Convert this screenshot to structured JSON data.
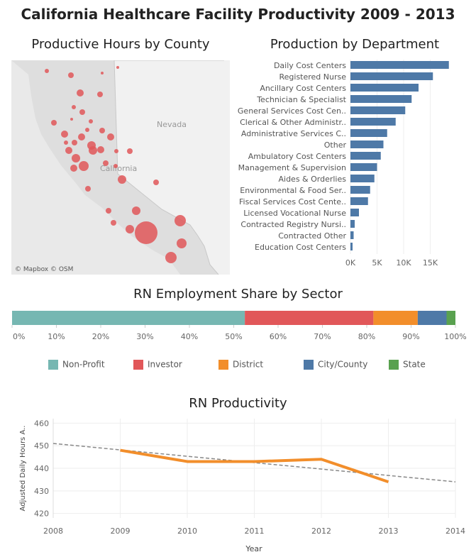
{
  "title": "California Healthcare Facility Productivity 2009 - 2013",
  "map": {
    "title": "Productive Hours by County",
    "place_labels": [
      "Nevada",
      "California"
    ],
    "attribution": "© Mapbox  © OSM",
    "bubble_color": "#e15759"
  },
  "chart_data": [
    {
      "type": "bar",
      "orientation": "horizontal",
      "title": "Production by Department",
      "categories": [
        "Daily Cost Centers",
        "Registered Nurse",
        "Ancillary Cost Centers",
        "Technician & Specialist",
        "General Services Cost Cen..",
        "Clerical & Other Administr..",
        "Administrative Services C..",
        "Other",
        "Ambulatory Cost Centers",
        "Management & Supervision",
        "Aides & Orderlies",
        "Environmental & Food Ser..",
        "Fiscal Services Cost Cente..",
        "Licensed Vocational Nurse",
        "Contracted Registry Nursi..",
        "Contracted Other",
        "Education Cost Centers"
      ],
      "values": [
        18500,
        15500,
        12800,
        11500,
        10300,
        8500,
        6900,
        6200,
        5700,
        5000,
        4500,
        3700,
        3300,
        1600,
        800,
        600,
        400
      ],
      "xticks": [
        "0K",
        "5K",
        "10K",
        "15K"
      ],
      "xlim": [
        0,
        20000
      ],
      "color": "#4e79a7"
    },
    {
      "type": "bar",
      "orientation": "stacked-100",
      "title": "RN Employment Share by Sector",
      "series": [
        {
          "name": "Non-Profit",
          "value": 52.5,
          "color": "#76b7b2"
        },
        {
          "name": "Investor",
          "value": 29.0,
          "color": "#e15759"
        },
        {
          "name": "District",
          "value": 10.0,
          "color": "#f28e2b"
        },
        {
          "name": "City/County",
          "value": 6.5,
          "color": "#4e79a7"
        },
        {
          "name": "State",
          "value": 2.0,
          "color": "#59a14f"
        }
      ],
      "xticks": [
        "0%",
        "10%",
        "20%",
        "30%",
        "40%",
        "50%",
        "60%",
        "70%",
        "80%",
        "90%",
        "100%"
      ],
      "legend_position": "bottom"
    },
    {
      "type": "line",
      "title": "RN Productivity",
      "xlabel": "Year",
      "ylabel": "Adjusted Daily Hours A..",
      "x": [
        2009,
        2010,
        2011,
        2012,
        2013
      ],
      "y": [
        448,
        443,
        443,
        444,
        434
      ],
      "xticks": [
        "2008",
        "2009",
        "2010",
        "2011",
        "2012",
        "2013",
        "2014"
      ],
      "yticks": [
        "420",
        "430",
        "440",
        "450",
        "460"
      ],
      "xlim": [
        2008,
        2014
      ],
      "ylim": [
        418,
        462
      ],
      "trend": {
        "x": [
          2008,
          2014
        ],
        "y": [
          451,
          434
        ]
      },
      "line_color": "#f28e2b",
      "trend_color": "#888888",
      "grid": true
    }
  ]
}
